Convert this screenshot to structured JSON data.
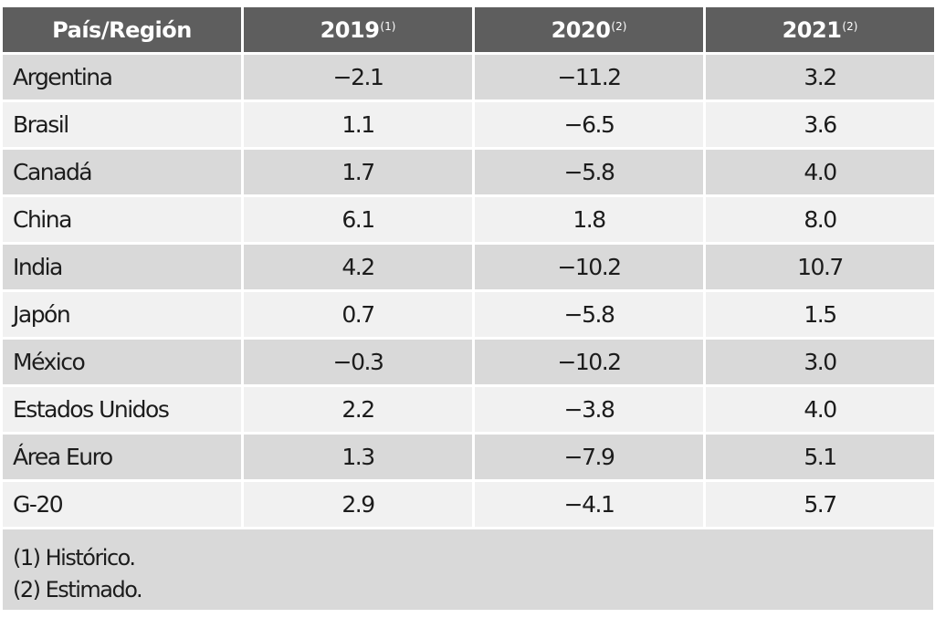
{
  "table": {
    "headers": [
      {
        "label": "País/Región",
        "sup": ""
      },
      {
        "label": "2019",
        "sup": "(1)"
      },
      {
        "label": "2020",
        "sup": "(2)"
      },
      {
        "label": "2021",
        "sup": "(2)"
      }
    ],
    "rows": [
      {
        "name": "Argentina",
        "v2019": "−2.1",
        "v2020": "−11.2",
        "v2021": "3.2"
      },
      {
        "name": "Brasil",
        "v2019": "1.1",
        "v2020": "−6.5",
        "v2021": "3.6"
      },
      {
        "name": "Canadá",
        "v2019": "1.7",
        "v2020": "−5.8",
        "v2021": "4.0"
      },
      {
        "name": "China",
        "v2019": "6.1",
        "v2020": "1.8",
        "v2021": "8.0"
      },
      {
        "name": "India",
        "v2019": "4.2",
        "v2020": "−10.2",
        "v2021": "10.7"
      },
      {
        "name": "Japón",
        "v2019": "0.7",
        "v2020": "−5.8",
        "v2021": "1.5"
      },
      {
        "name": "México",
        "v2019": "−0.3",
        "v2020": "−10.2",
        "v2021": "3.0"
      },
      {
        "name": "Estados Unidos",
        "v2019": "2.2",
        "v2020": "−3.8",
        "v2021": "4.0"
      },
      {
        "name": "Área Euro",
        "v2019": "1.3",
        "v2020": "−7.9",
        "v2021": "5.1"
      },
      {
        "name": "G-20",
        "v2019": "2.9",
        "v2020": "−4.1",
        "v2021": "5.7"
      }
    ],
    "notes": [
      "(1) Histórico.",
      "(2) Estimado."
    ]
  },
  "colors": {
    "header_bg": "#5e5e5e",
    "row_dark": "#d9d9d9",
    "row_light": "#f1f1f1"
  }
}
